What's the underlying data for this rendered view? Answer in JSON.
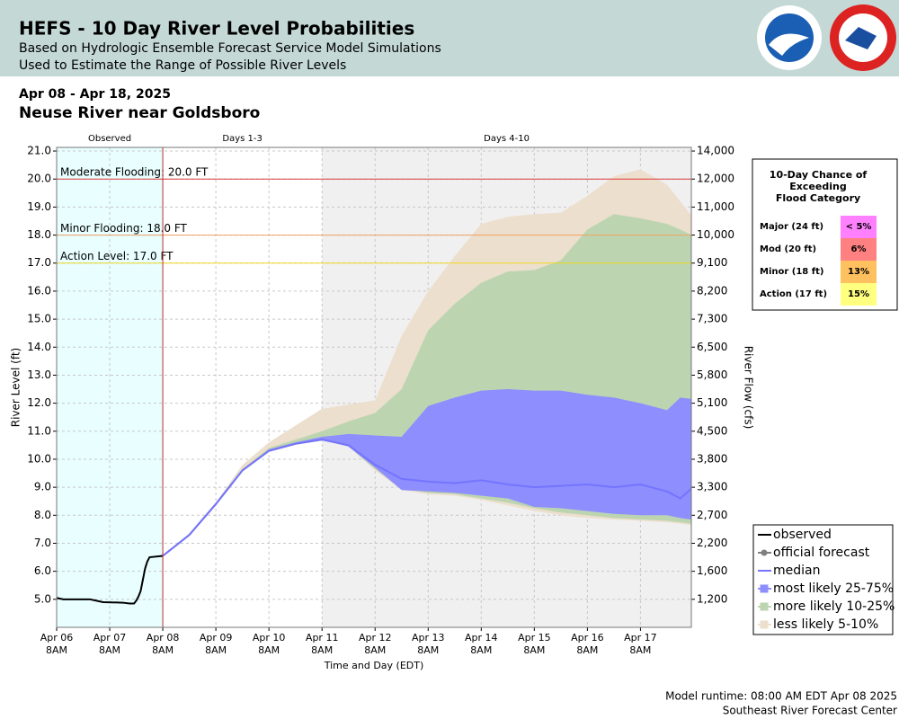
{
  "chart_data": {
    "type": "hefs",
    "title": "HEFS - 10 Day River Level Probabilities",
    "subtitle_lines": [
      "Based on Hydrologic Ensemble Forecast Service Model Simulations",
      "Used to Estimate the Range of Possible River Levels"
    ],
    "date_range": "Apr 08 - Apr 18, 2025",
    "location": "Neuse River near Goldsboro",
    "y_label": "River Level (ft)",
    "y2_label": "River Flow (cfs)",
    "x_label": "Time and Day (EDT)",
    "grid": true,
    "xlim": [
      "Apr 06 08:00",
      "Apr 18 07:00"
    ],
    "xticks": [
      {
        "value": "Apr 06 08:00",
        "label": "Apr 06\n8AM"
      },
      {
        "value": "Apr 07 08:00",
        "label": "Apr 07\n8AM"
      },
      {
        "value": "Apr 08 08:00",
        "label": "Apr 08\n8AM"
      },
      {
        "value": "Apr 09 08:00",
        "label": "Apr 09\n8AM"
      },
      {
        "value": "Apr 10 08:00",
        "label": "Apr 10\n8AM"
      },
      {
        "value": "Apr 11 08:00",
        "label": "Apr 11\n8AM"
      },
      {
        "value": "Apr 12 08:00",
        "label": "Apr 12\n8AM"
      },
      {
        "value": "Apr 13 08:00",
        "label": "Apr 13\n8AM"
      },
      {
        "value": "Apr 14 08:00",
        "label": "Apr 14\n8AM"
      },
      {
        "value": "Apr 15 08:00",
        "label": "Apr 15\n8AM"
      },
      {
        "value": "Apr 16 08:00",
        "label": "Apr 16\n8AM"
      },
      {
        "value": "Apr 17 08:00",
        "label": "Apr 17\n8AM"
      }
    ],
    "ylim": [
      4.0,
      21.13
    ],
    "yticks": [
      {
        "value": 5,
        "label": "5.0"
      },
      {
        "value": 6,
        "label": "6.0"
      },
      {
        "value": 7,
        "label": "7.0"
      },
      {
        "value": 8,
        "label": "8.0"
      },
      {
        "value": 9,
        "label": "9.0"
      },
      {
        "value": 10,
        "label": "10.0"
      },
      {
        "value": 11,
        "label": "11.0"
      },
      {
        "value": 12,
        "label": "12.0"
      },
      {
        "value": 13,
        "label": "13.0"
      },
      {
        "value": 14,
        "label": "14.0"
      },
      {
        "value": 15,
        "label": "15.0"
      },
      {
        "value": 16,
        "label": "16.0"
      },
      {
        "value": 17,
        "label": "17.0"
      },
      {
        "value": 18,
        "label": "18.0"
      },
      {
        "value": 19,
        "label": "19.0"
      },
      {
        "value": 20,
        "label": "20.0"
      },
      {
        "value": 21,
        "label": "21.0"
      }
    ],
    "y2ticks": [
      {
        "value": 1200,
        "label": "1,200"
      },
      {
        "value": 1600,
        "label": "1,600"
      },
      {
        "value": 2200,
        "label": "2,200"
      },
      {
        "value": 2700,
        "label": "2,700"
      },
      {
        "value": 3300,
        "label": "3,300"
      },
      {
        "value": 3800,
        "label": "3,800"
      },
      {
        "value": 4500,
        "label": "4,500"
      },
      {
        "value": 5100,
        "label": "5,100"
      },
      {
        "value": 5800,
        "label": "5,800"
      },
      {
        "value": 6500,
        "label": "6,500"
      },
      {
        "value": 7300,
        "label": "7,300"
      },
      {
        "value": 8200,
        "label": "8,200"
      },
      {
        "value": 9100,
        "label": "9,100"
      },
      {
        "value": 10000,
        "label": "10,000"
      },
      {
        "value": 11000,
        "label": "11,000"
      },
      {
        "value": 12000,
        "label": "12,000"
      },
      {
        "value": 14000,
        "label": "14,000"
      }
    ],
    "regions": [
      {
        "label": "Observed",
        "start": "Apr 06 08:00",
        "end": "Apr 08 08:00",
        "color": "#e8feff"
      },
      {
        "label": "Days 1-3",
        "start": "Apr 08 08:00",
        "end": "Apr 11 08:00",
        "color": "#ffffff"
      },
      {
        "label": "Days 4-10",
        "start": "Apr 11 08:00",
        "end": "Apr 18 07:00",
        "color": "#f0f0f0"
      }
    ],
    "flood_levels": [
      {
        "label": "Moderate Flooding: 20.0 FT",
        "value": 20,
        "color": "#e03c3c"
      },
      {
        "label": "Minor Flooding: 18.0 FT",
        "value": 18,
        "color": "#f0a060"
      },
      {
        "label": "Action Level: 17.0 FT",
        "value": 17,
        "color": "#f0d820"
      }
    ],
    "series": [
      {
        "name": "observed",
        "kind": "line",
        "color": "#000000",
        "x": [
          "Apr 06 08:00",
          "Apr 06 11:00",
          "Apr 06 23:00",
          "Apr 07 02:00",
          "Apr 07 05:00",
          "Apr 07 14:00",
          "Apr 07 17:00",
          "Apr 07 19:00",
          "Apr 07 20:00",
          "Apr 07 21:00",
          "Apr 07 22:00",
          "Apr 07 23:00",
          "Apr 08 00:00",
          "Apr 08 01:00",
          "Apr 08 02:00",
          "Apr 08 08:00"
        ],
        "values": [
          5.05,
          5.0,
          5.0,
          4.95,
          4.9,
          4.88,
          4.85,
          4.85,
          4.95,
          5.1,
          5.3,
          5.7,
          6.1,
          6.35,
          6.5,
          6.55
        ]
      },
      {
        "name": "official forecast",
        "kind": "line",
        "color": "#808080",
        "x": [
          "Apr 08 08:00",
          "Apr 08 20:00",
          "Apr 09 08:00",
          "Apr 09 20:00",
          "Apr 10 08:00",
          "Apr 10 20:00",
          "Apr 11 08:00"
        ],
        "values": [
          6.55,
          7.3,
          8.4,
          9.6,
          10.3,
          10.55,
          10.7
        ]
      },
      {
        "name": "median",
        "kind": "line",
        "color": "#7474ff",
        "x": [
          "Apr 08 08:00",
          "Apr 08 20:00",
          "Apr 09 08:00",
          "Apr 09 20:00",
          "Apr 10 08:00",
          "Apr 10 20:00",
          "Apr 11 08:00",
          "Apr 11 20:00",
          "Apr 12 08:00",
          "Apr 12 20:00",
          "Apr 13 08:00",
          "Apr 13 20:00",
          "Apr 14 08:00",
          "Apr 14 20:00",
          "Apr 15 08:00",
          "Apr 15 20:00",
          "Apr 16 08:00",
          "Apr 16 20:00",
          "Apr 17 08:00",
          "Apr 17 20:00",
          "Apr 18 02:00",
          "Apr 18 07:00"
        ],
        "values": [
          6.55,
          7.3,
          8.4,
          9.6,
          10.3,
          10.55,
          10.7,
          10.5,
          9.8,
          9.3,
          9.2,
          9.15,
          9.25,
          9.1,
          9.0,
          9.05,
          9.1,
          9.0,
          9.1,
          8.85,
          8.6,
          8.95
        ]
      },
      {
        "name": "most likely 25-75%",
        "kind": "band",
        "color": "#8e8eff",
        "x": [
          "Apr 08 08:00",
          "Apr 08 20:00",
          "Apr 09 08:00",
          "Apr 09 20:00",
          "Apr 10 08:00",
          "Apr 10 20:00",
          "Apr 11 08:00",
          "Apr 11 20:00",
          "Apr 12 08:00",
          "Apr 12 20:00",
          "Apr 13 08:00",
          "Apr 13 20:00",
          "Apr 14 08:00",
          "Apr 14 20:00",
          "Apr 15 08:00",
          "Apr 15 20:00",
          "Apr 16 08:00",
          "Apr 16 20:00",
          "Apr 17 08:00",
          "Apr 17 20:00",
          "Apr 18 02:00",
          "Apr 18 07:00"
        ],
        "low": [
          6.55,
          7.3,
          8.4,
          9.6,
          10.3,
          10.55,
          10.7,
          10.45,
          9.7,
          8.9,
          8.85,
          8.8,
          8.7,
          8.6,
          8.3,
          8.25,
          8.15,
          8.05,
          8.0,
          8.0,
          7.9,
          7.85
        ],
        "high": [
          6.55,
          7.3,
          8.4,
          9.6,
          10.35,
          10.6,
          10.8,
          10.9,
          10.85,
          10.8,
          11.9,
          12.2,
          12.45,
          12.5,
          12.45,
          12.45,
          12.3,
          12.2,
          12.0,
          11.75,
          12.2,
          12.15
        ]
      },
      {
        "name": "more likely 10-25%",
        "kind": "band",
        "color": "#bcd5b0",
        "x": [
          "Apr 08 08:00",
          "Apr 08 20:00",
          "Apr 09 08:00",
          "Apr 09 20:00",
          "Apr 10 08:00",
          "Apr 10 20:00",
          "Apr 11 08:00",
          "Apr 11 20:00",
          "Apr 12 08:00",
          "Apr 12 20:00",
          "Apr 13 08:00",
          "Apr 13 20:00",
          "Apr 14 08:00",
          "Apr 14 20:00",
          "Apr 15 08:00",
          "Apr 15 20:00",
          "Apr 16 08:00",
          "Apr 16 20:00",
          "Apr 17 08:00",
          "Apr 17 20:00",
          "Apr 18 02:00",
          "Apr 18 07:00"
        ],
        "low": [
          6.55,
          7.3,
          8.4,
          9.6,
          10.3,
          10.55,
          10.7,
          10.45,
          9.65,
          8.95,
          8.8,
          8.75,
          8.6,
          8.45,
          8.25,
          8.1,
          8.0,
          7.9,
          7.85,
          7.8,
          7.75,
          7.7
        ],
        "high": [
          6.55,
          7.3,
          8.4,
          9.65,
          10.4,
          10.7,
          11.0,
          11.35,
          11.65,
          12.5,
          14.6,
          15.55,
          16.3,
          16.7,
          16.75,
          17.1,
          18.2,
          18.75,
          18.6,
          18.4,
          18.2,
          18.0
        ]
      },
      {
        "name": "less likely 5-10%",
        "kind": "band",
        "color": "#ecdfcd",
        "x": [
          "Apr 08 08:00",
          "Apr 08 20:00",
          "Apr 09 08:00",
          "Apr 09 20:00",
          "Apr 10 08:00",
          "Apr 10 20:00",
          "Apr 11 08:00",
          "Apr 11 20:00",
          "Apr 12 08:00",
          "Apr 12 20:00",
          "Apr 13 08:00",
          "Apr 13 20:00",
          "Apr 14 08:00",
          "Apr 14 20:00",
          "Apr 15 08:00",
          "Apr 15 20:00",
          "Apr 16 08:00",
          "Apr 16 20:00",
          "Apr 17 08:00",
          "Apr 17 20:00",
          "Apr 18 02:00",
          "Apr 18 07:00"
        ],
        "low": [
          6.55,
          7.3,
          8.4,
          9.6,
          10.3,
          10.55,
          10.7,
          10.45,
          9.6,
          8.9,
          8.75,
          8.7,
          8.55,
          8.35,
          8.15,
          8.0,
          7.9,
          7.85,
          7.8,
          7.75,
          7.7,
          7.65
        ],
        "high": [
          6.55,
          7.35,
          8.45,
          9.8,
          10.6,
          11.2,
          11.8,
          11.95,
          12.1,
          14.4,
          16.0,
          17.25,
          18.4,
          18.65,
          18.75,
          18.8,
          19.4,
          20.1,
          20.35,
          19.8,
          19.2,
          18.7
        ]
      }
    ],
    "exceedance": {
      "title_lines": [
        "10-Day Chance of",
        "Exceeding",
        "Flood Category"
      ],
      "rows": [
        {
          "category": "Major (24 ft)",
          "chance": "< 5%",
          "color": "#ff80ff"
        },
        {
          "category": "Mod (20 ft)",
          "chance": "6%",
          "color": "#ff8080"
        },
        {
          "category": "Minor (18 ft)",
          "chance": "13%",
          "color": "#ffc060"
        },
        {
          "category": "Action (17 ft)",
          "chance": "15%",
          "color": "#ffff80"
        }
      ]
    },
    "footer_lines": [
      "Model runtime: 08:00 AM EDT Apr 08 2025",
      "Southeast River Forecast Center"
    ]
  }
}
